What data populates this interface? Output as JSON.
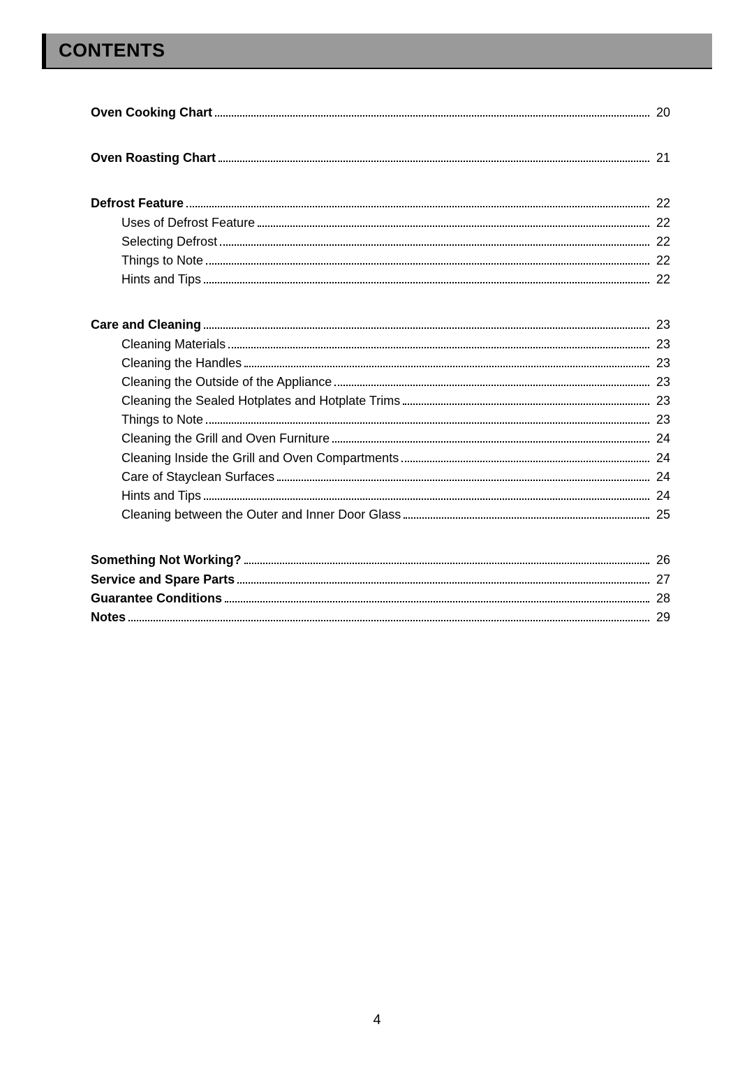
{
  "header": {
    "title": "CONTENTS"
  },
  "toc": {
    "groups": [
      {
        "spacing": "normal",
        "items": [
          {
            "label": "Oven Cooking Chart",
            "page": "20",
            "bold": true,
            "sub": false
          }
        ]
      },
      {
        "spacing": "normal",
        "items": [
          {
            "label": "Oven Roasting Chart",
            "page": "21",
            "bold": true,
            "sub": false
          }
        ]
      },
      {
        "spacing": "normal",
        "items": [
          {
            "label": "Defrost Feature",
            "page": "22",
            "bold": true,
            "sub": false
          },
          {
            "label": "Uses of Defrost Feature",
            "page": "22",
            "bold": false,
            "sub": true
          },
          {
            "label": "Selecting Defrost",
            "page": "22",
            "bold": false,
            "sub": true
          },
          {
            "label": "Things to Note",
            "page": "22",
            "bold": false,
            "sub": true
          },
          {
            "label": "Hints and Tips",
            "page": "22",
            "bold": false,
            "sub": true
          }
        ]
      },
      {
        "spacing": "normal",
        "items": [
          {
            "label": "Care and Cleaning",
            "page": "23",
            "bold": true,
            "sub": false
          },
          {
            "label": "Cleaning Materials",
            "page": "23",
            "bold": false,
            "sub": true
          },
          {
            "label": "Cleaning the Handles",
            "page": "23",
            "bold": false,
            "sub": true
          },
          {
            "label": "Cleaning the Outside of the Appliance",
            "page": "23",
            "bold": false,
            "sub": true
          },
          {
            "label": "Cleaning the Sealed Hotplates and Hotplate Trims",
            "page": "23",
            "bold": false,
            "sub": true
          },
          {
            "label": "Things to Note",
            "page": "23",
            "bold": false,
            "sub": true
          },
          {
            "label": "Cleaning the Grill and Oven Furniture",
            "page": "24",
            "bold": false,
            "sub": true
          },
          {
            "label": "Cleaning Inside the Grill and Oven Compartments",
            "page": "24",
            "bold": false,
            "sub": true
          },
          {
            "label": "Care of Stayclean Surfaces",
            "page": "24",
            "bold": false,
            "sub": true
          },
          {
            "label": "Hints and Tips",
            "page": "24",
            "bold": false,
            "sub": true
          },
          {
            "label": "Cleaning between the Outer and Inner Door Glass",
            "page": "25",
            "bold": false,
            "sub": true
          }
        ]
      },
      {
        "spacing": "tight",
        "items": [
          {
            "label": "Something Not Working?",
            "page": "26",
            "bold": true,
            "sub": false
          },
          {
            "label": "Service and Spare Parts",
            "page": "27",
            "bold": true,
            "sub": false
          },
          {
            "label": "Guarantee Conditions",
            "page": "28",
            "bold": true,
            "sub": false
          },
          {
            "label": "Notes",
            "page": "29",
            "bold": true,
            "sub": false
          }
        ]
      }
    ]
  },
  "footer": {
    "page_number": "4"
  }
}
